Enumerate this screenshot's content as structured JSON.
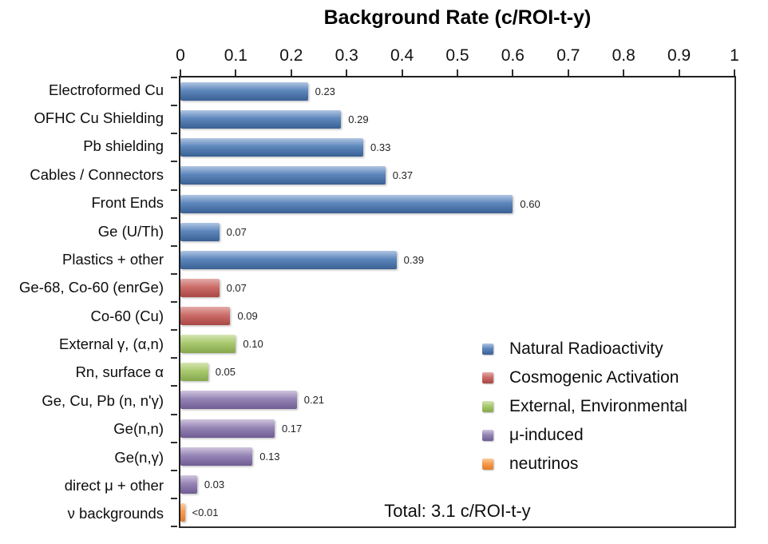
{
  "title": "Background Rate (c/ROI-t-y)",
  "total_annotation": "Total: 3.1 c/ROI-t-y",
  "colors": {
    "natural": {
      "light": "#b1c5e2",
      "mid": "#5d87bc",
      "dark": "#3a6094"
    },
    "cosmogenic": {
      "light": "#e3aca9",
      "mid": "#cb6d69",
      "dark": "#a84643"
    },
    "external": {
      "light": "#d6e5b3",
      "mid": "#a9c96e",
      "dark": "#87a74e"
    },
    "mu": {
      "light": "#d0c5de",
      "mid": "#9585b5",
      "dark": "#6f5b92"
    },
    "neutrinos": {
      "light": "#fbcf9f",
      "mid": "#f89b4d",
      "dark": "#e17c2a"
    }
  },
  "chart_data": {
    "type": "bar",
    "orientation": "horizontal",
    "title": "Background Rate (c/ROI-t-y)",
    "xlim": [
      0,
      1
    ],
    "grid": false,
    "x_ticks": [
      0,
      0.1,
      0.2,
      0.3,
      0.4,
      0.5,
      0.6,
      0.7,
      0.8,
      0.9,
      1
    ],
    "x_tick_labels": [
      "0",
      "0.1",
      "0.2",
      "0.3",
      "0.4",
      "0.5",
      "0.6",
      "0.7",
      "0.8",
      "0.9",
      "1"
    ],
    "categories": [
      "Electroformed Cu",
      "OFHC Cu Shielding",
      "Pb shielding",
      "Cables / Connectors",
      "Front Ends",
      "Ge (U/Th)",
      "Plastics + other",
      "Ge-68, Co-60 (enrGe)",
      "Co-60 (Cu)",
      "External γ, (α,n)",
      "Rn, surface α",
      "Ge, Cu, Pb (n, n'γ)",
      "Ge(n,n)",
      "Ge(n,γ)",
      "direct μ + other",
      "ν backgrounds"
    ],
    "values": [
      0.23,
      0.29,
      0.33,
      0.37,
      0.6,
      0.07,
      0.39,
      0.07,
      0.09,
      0.1,
      0.05,
      0.21,
      0.17,
      0.13,
      0.03,
      0.008
    ],
    "value_labels": [
      "0.23",
      "0.29",
      "0.33",
      "0.37",
      "0.60",
      "0.07",
      "0.39",
      "0.07",
      "0.09",
      "0.10",
      "0.05",
      "0.21",
      "0.17",
      "0.13",
      "0.03",
      "<0.01"
    ],
    "groups": [
      "natural",
      "natural",
      "natural",
      "natural",
      "natural",
      "natural",
      "natural",
      "cosmogenic",
      "cosmogenic",
      "external",
      "external",
      "mu",
      "mu",
      "mu",
      "mu",
      "neutrinos"
    ],
    "legend": [
      {
        "label": "Natural Radioactivity",
        "group": "natural"
      },
      {
        "label": "Cosmogenic Activation",
        "group": "cosmogenic"
      },
      {
        "label": "External, Environmental",
        "group": "external"
      },
      {
        "label": "μ-induced",
        "group": "mu"
      },
      {
        "label": "neutrinos",
        "group": "neutrinos"
      }
    ],
    "legend_position": "center-right",
    "annotation": "Total: 3.1 c/ROI-t-y"
  }
}
